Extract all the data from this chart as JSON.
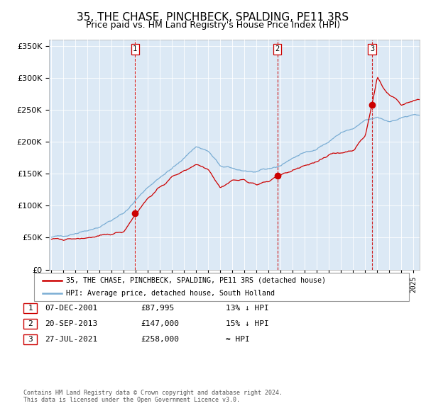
{
  "title": "35, THE CHASE, PINCHBECK, SPALDING, PE11 3RS",
  "subtitle": "Price paid vs. HM Land Registry's House Price Index (HPI)",
  "title_fontsize": 11,
  "subtitle_fontsize": 9,
  "bg_color": "#dce9f5",
  "red_line_color": "#cc0000",
  "blue_line_color": "#7aadd4",
  "sale_dot_color": "#cc0000",
  "sale1_date": 2001.93,
  "sale1_price": 87995,
  "sale2_date": 2013.72,
  "sale2_price": 147000,
  "sale3_date": 2021.56,
  "sale3_price": 258000,
  "vline_color": "#cc0000",
  "ylim": [
    0,
    360000
  ],
  "xlim_start": 1994.8,
  "xlim_end": 2025.5,
  "legend_label_red": "35, THE CHASE, PINCHBECK, SPALDING, PE11 3RS (detached house)",
  "legend_label_blue": "HPI: Average price, detached house, South Holland",
  "table_rows": [
    {
      "num": "1",
      "date": "07-DEC-2001",
      "price": "£87,995",
      "rel": "13% ↓ HPI"
    },
    {
      "num": "2",
      "date": "20-SEP-2013",
      "price": "£147,000",
      "rel": "15% ↓ HPI"
    },
    {
      "num": "3",
      "date": "27-JUL-2021",
      "price": "£258,000",
      "rel": "≈ HPI"
    }
  ],
  "footer": "Contains HM Land Registry data © Crown copyright and database right 2024.\nThis data is licensed under the Open Government Licence v3.0."
}
